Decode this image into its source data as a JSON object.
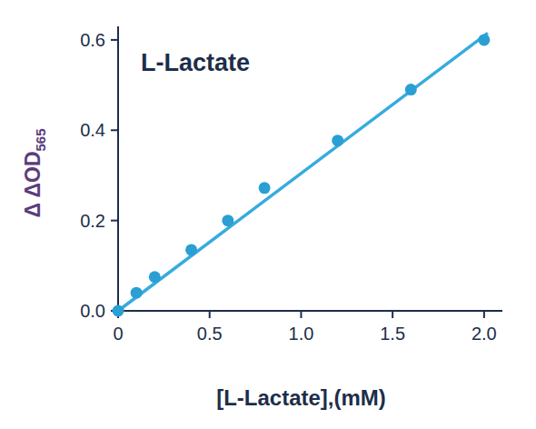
{
  "chart_data": {
    "type": "scatter",
    "title": "L-Lactate",
    "x_label": "[L-Lactate],(mM)",
    "y_label": {
      "text": "Δ ΔOD",
      "subscript": "565"
    },
    "xlim": [
      0,
      2.1
    ],
    "ylim": [
      0,
      0.63
    ],
    "xticks": [
      0,
      0.5,
      {
        "value": 1,
        "label": "1.0"
      },
      1.5,
      {
        "value": 2,
        "label": "2.0"
      }
    ],
    "yticks": [
      {
        "value": 0,
        "label": "0.0"
      },
      0.2,
      0.4,
      0.6
    ],
    "grid": false,
    "series": [
      {
        "type": "scatter",
        "marker": "circle",
        "color": "#2a9fd3",
        "x": [
          0,
          0.1,
          0.2,
          0.4,
          0.6,
          0.8,
          1.2,
          1.6,
          2.0
        ],
        "values": [
          0,
          0.04,
          0.075,
          0.135,
          0.2,
          0.272,
          0.377,
          0.49,
          0.6
        ]
      },
      {
        "type": "line",
        "line_style": "solid",
        "color": "#36abdf",
        "x": [
          0,
          2.02
        ],
        "values": [
          0,
          0.615
        ]
      }
    ]
  }
}
